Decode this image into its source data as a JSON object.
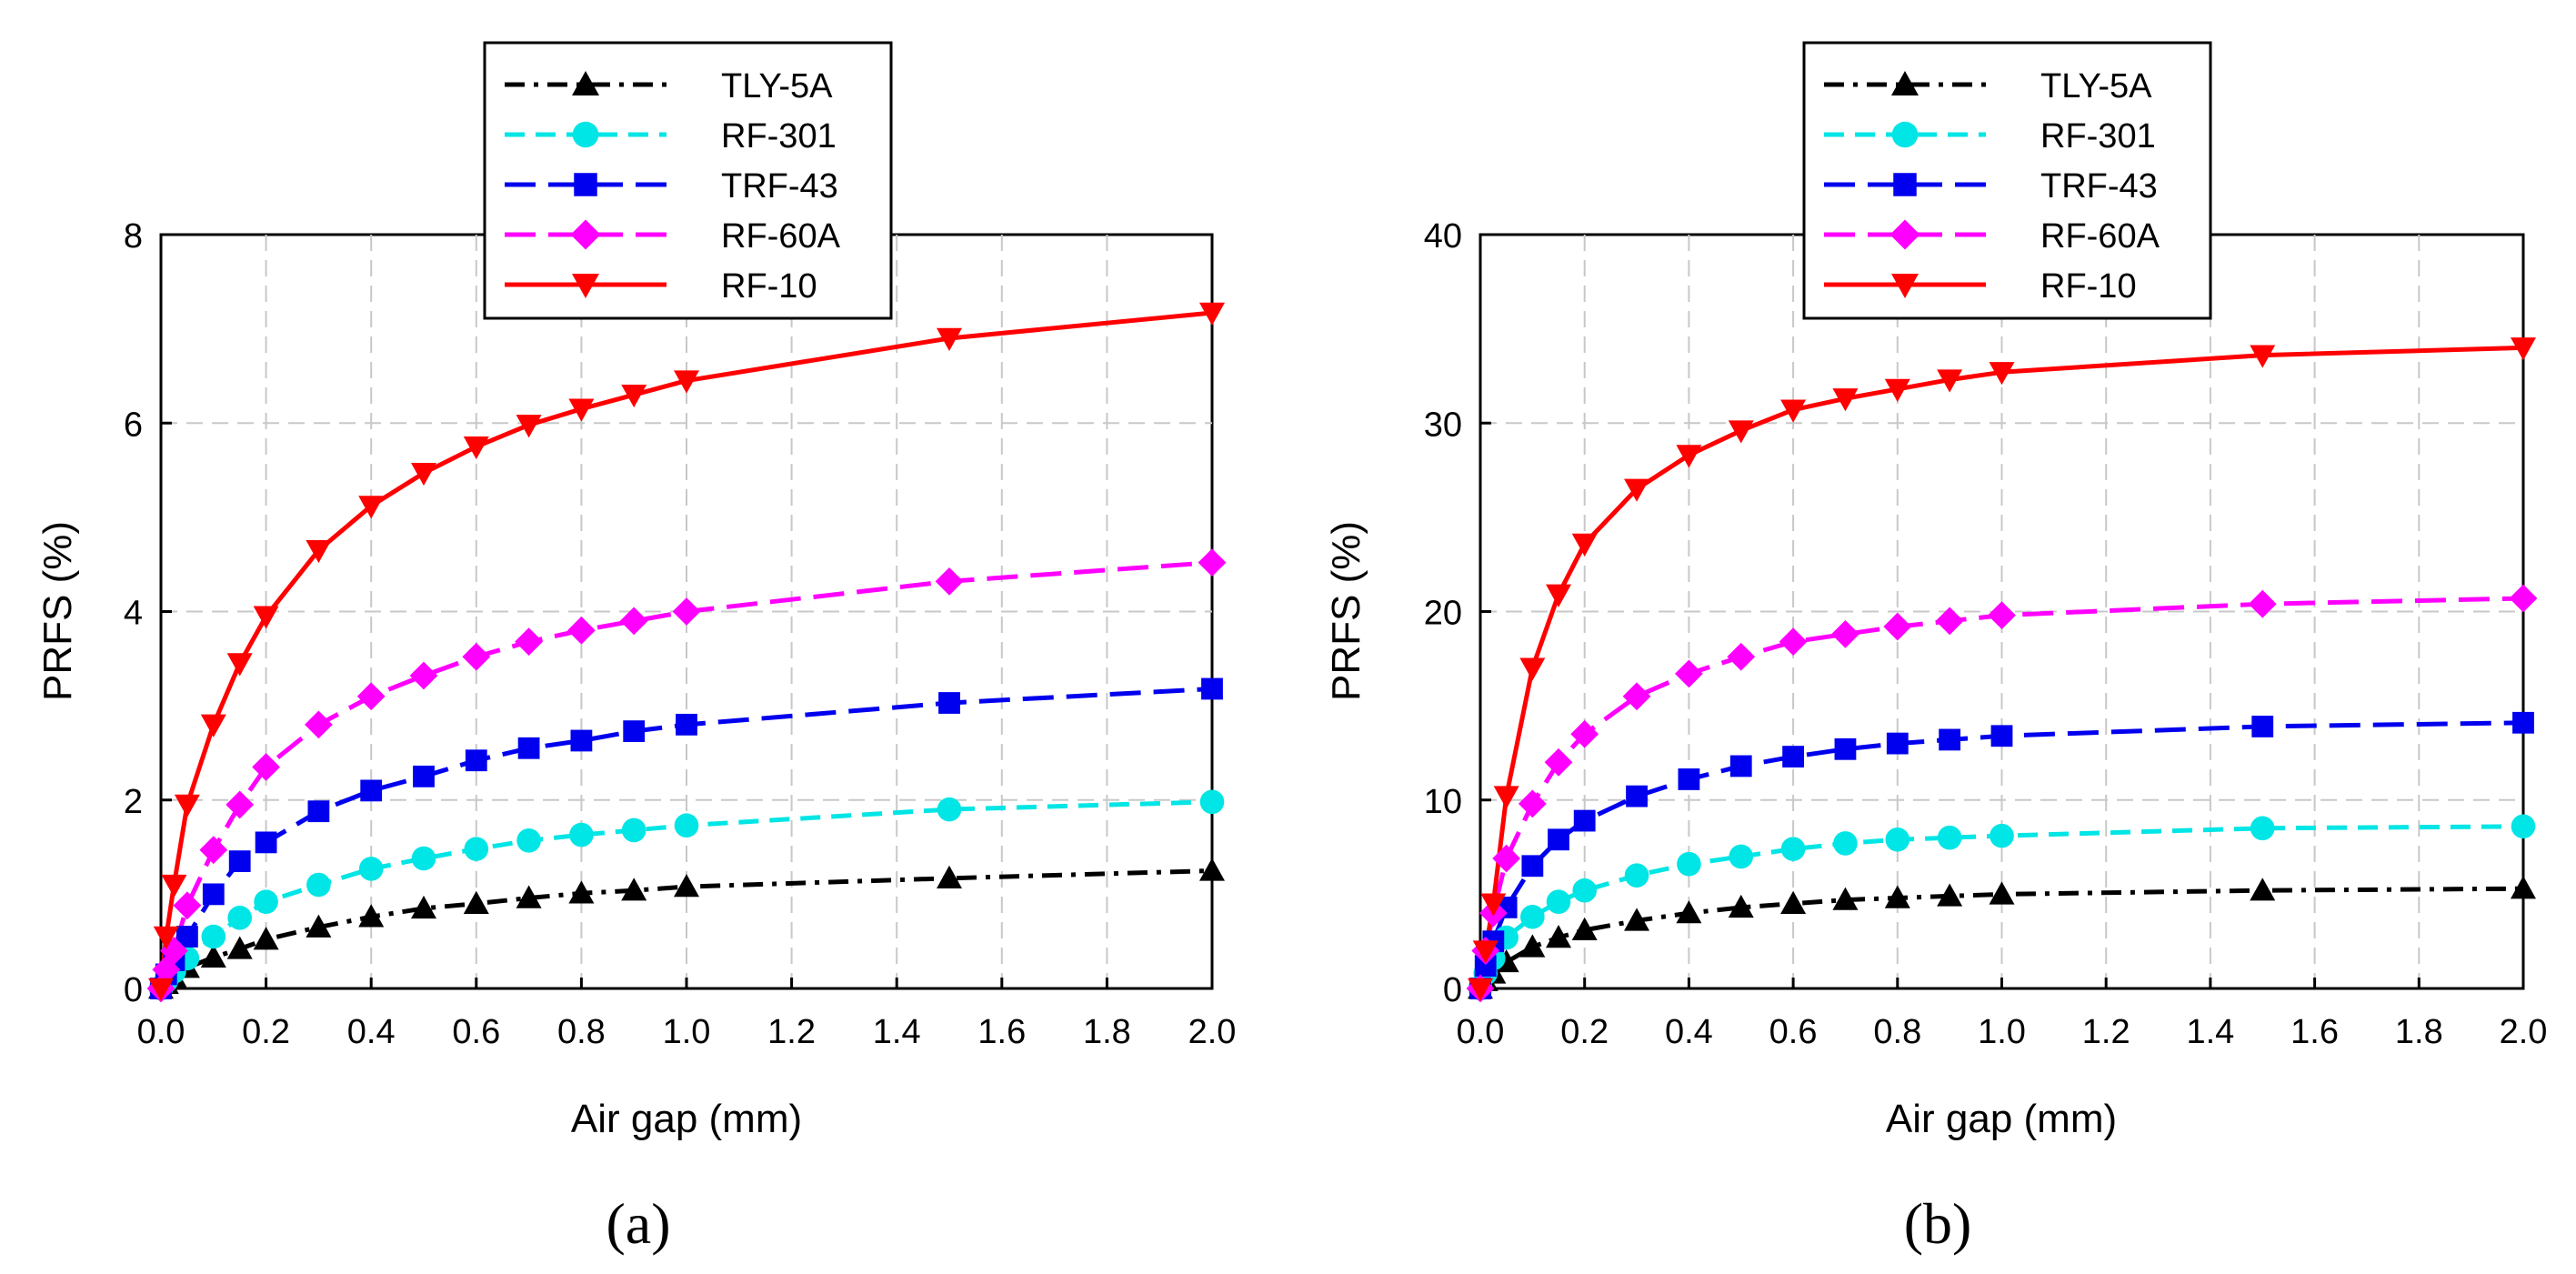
{
  "chart_data": [
    {
      "type": "line",
      "panel_label": "(a)",
      "xlabel": "Air gap (mm)",
      "ylabel": "PRFS (%)",
      "xlim": [
        0,
        2.0
      ],
      "ylim": [
        0,
        8
      ],
      "xticks": [
        "0.0",
        "0.2",
        "0.4",
        "0.6",
        "0.8",
        "1.0",
        "1.2",
        "1.4",
        "1.6",
        "1.8",
        "2.0"
      ],
      "yticks": [
        "0",
        "2",
        "4",
        "6",
        "8"
      ],
      "grid": true,
      "legend_position": "top-center",
      "x": [
        0,
        0.01,
        0.025,
        0.05,
        0.1,
        0.15,
        0.2,
        0.3,
        0.4,
        0.5,
        0.6,
        0.7,
        0.8,
        0.9,
        1.0,
        1.5,
        2.0
      ],
      "series": [
        {
          "name": "TLY-5A",
          "color": "#000000",
          "marker": "triangle",
          "dash": "dashdot",
          "values": [
            0,
            0.05,
            0.12,
            0.22,
            0.33,
            0.42,
            0.52,
            0.65,
            0.76,
            0.85,
            0.9,
            0.96,
            1.01,
            1.04,
            1.08,
            1.17,
            1.25
          ]
        },
        {
          "name": "RF-301",
          "color": "#00e5e5",
          "marker": "circle",
          "dash": "dash",
          "values": [
            0,
            0.08,
            0.18,
            0.32,
            0.55,
            0.75,
            0.92,
            1.1,
            1.27,
            1.38,
            1.48,
            1.57,
            1.63,
            1.68,
            1.73,
            1.9,
            1.98
          ]
        },
        {
          "name": "TRF-43",
          "color": "#0000ee",
          "marker": "square",
          "dash": "longdash",
          "values": [
            0,
            0.15,
            0.3,
            0.55,
            1.0,
            1.35,
            1.55,
            1.88,
            2.1,
            2.25,
            2.42,
            2.55,
            2.63,
            2.73,
            2.8,
            3.03,
            3.18
          ]
        },
        {
          "name": "RF-60A",
          "color": "#ff00ff",
          "marker": "diamond",
          "dash": "longdash",
          "values": [
            0,
            0.2,
            0.4,
            0.88,
            1.47,
            1.95,
            2.35,
            2.8,
            3.1,
            3.32,
            3.52,
            3.68,
            3.8,
            3.9,
            4.0,
            4.32,
            4.52
          ]
        },
        {
          "name": "RF-10",
          "color": "#ff0000",
          "marker": "triangle-down",
          "dash": "solid",
          "values": [
            0,
            0.55,
            1.1,
            1.95,
            2.8,
            3.45,
            3.95,
            4.65,
            5.12,
            5.47,
            5.75,
            5.98,
            6.15,
            6.3,
            6.45,
            6.9,
            7.17
          ]
        }
      ]
    },
    {
      "type": "line",
      "panel_label": "(b)",
      "xlabel": "Air gap (mm)",
      "ylabel": "PRFS (%)",
      "xlim": [
        0,
        2.0
      ],
      "ylim": [
        0,
        40
      ],
      "xticks": [
        "0.0",
        "0.2",
        "0.4",
        "0.6",
        "0.8",
        "1.0",
        "1.2",
        "1.4",
        "1.6",
        "1.8",
        "2.0"
      ],
      "yticks": [
        "0",
        "10",
        "20",
        "30",
        "40"
      ],
      "grid": true,
      "legend_position": "top-left",
      "x": [
        0,
        0.01,
        0.025,
        0.05,
        0.1,
        0.15,
        0.2,
        0.3,
        0.4,
        0.5,
        0.6,
        0.7,
        0.8,
        0.9,
        1.0,
        1.5,
        2.0
      ],
      "series": [
        {
          "name": "TLY-5A",
          "color": "#000000",
          "marker": "triangle",
          "dash": "dashdot",
          "values": [
            0,
            0.4,
            0.8,
            1.4,
            2.2,
            2.7,
            3.1,
            3.6,
            4.0,
            4.3,
            4.5,
            4.7,
            4.8,
            4.9,
            5.0,
            5.2,
            5.3
          ]
        },
        {
          "name": "RF-301",
          "color": "#00e5e5",
          "marker": "circle",
          "dash": "dash",
          "values": [
            0,
            0.8,
            1.6,
            2.7,
            3.8,
            4.6,
            5.2,
            6.0,
            6.6,
            7.0,
            7.4,
            7.7,
            7.9,
            8.0,
            8.1,
            8.5,
            8.6
          ]
        },
        {
          "name": "TRF-43",
          "color": "#0000ee",
          "marker": "square",
          "dash": "longdash",
          "values": [
            0,
            1.2,
            2.5,
            4.3,
            6.5,
            7.9,
            8.9,
            10.2,
            11.1,
            11.8,
            12.3,
            12.7,
            13.0,
            13.2,
            13.4,
            13.9,
            14.1
          ]
        },
        {
          "name": "RF-60A",
          "color": "#ff00ff",
          "marker": "diamond",
          "dash": "longdash",
          "values": [
            0,
            2.0,
            4.0,
            6.9,
            9.8,
            12.0,
            13.5,
            15.5,
            16.7,
            17.6,
            18.4,
            18.8,
            19.2,
            19.5,
            19.8,
            20.4,
            20.7
          ]
        },
        {
          "name": "RF-10",
          "color": "#ff0000",
          "marker": "triangle-down",
          "dash": "solid",
          "values": [
            0,
            2.0,
            4.5,
            10.2,
            17.0,
            20.9,
            23.6,
            26.5,
            28.3,
            29.6,
            30.7,
            31.3,
            31.8,
            32.3,
            32.7,
            33.6,
            34.0
          ]
        }
      ]
    }
  ]
}
